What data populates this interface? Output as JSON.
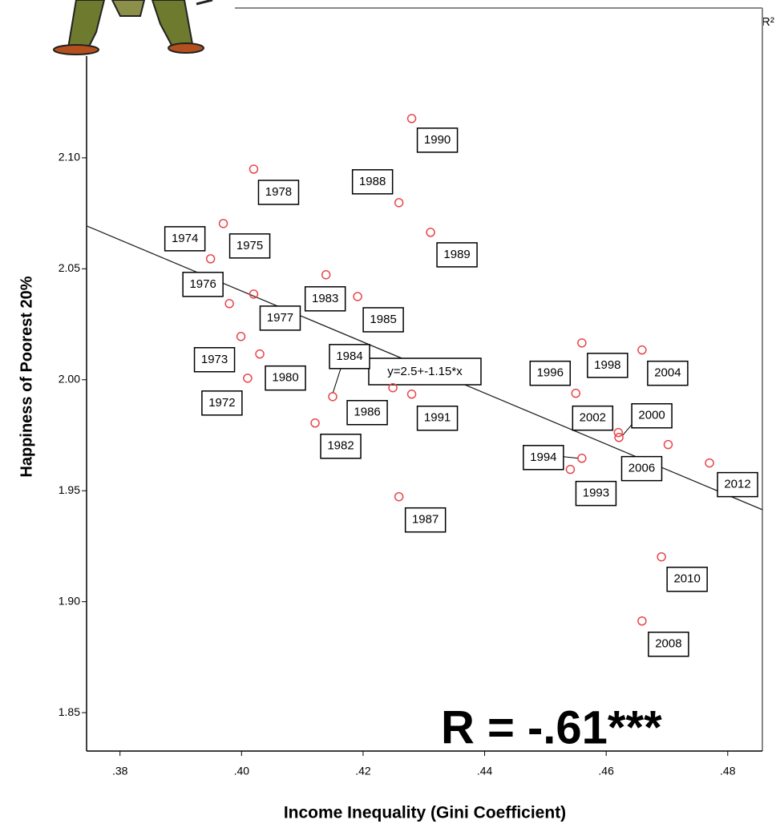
{
  "chart_data": {
    "type": "scatter",
    "x_label": "Income Inequality (Gini Coefficient)",
    "y_label": "Happiness of Poorest 20%",
    "annotation": "R = -.61***",
    "corner_label": "R²",
    "fit_label": "y=2.5+-1.15*x",
    "fit_line": {
      "intercept": 2.5,
      "slope": -1.15
    },
    "xlim": [
      0.3745,
      0.4857
    ],
    "ylim": [
      1.8327,
      2.1675
    ],
    "xticks": [
      {
        "value": 0.38,
        "label": ".38"
      },
      {
        "value": 0.4,
        "label": ".40"
      },
      {
        "value": 0.42,
        "label": ".42"
      },
      {
        "value": 0.44,
        "label": ".44"
      },
      {
        "value": 0.46,
        "label": ".46"
      },
      {
        "value": 0.48,
        "label": ".48"
      }
    ],
    "yticks": [
      1.85,
      {
        "value": 1.9,
        "label": "1.90"
      },
      1.95,
      {
        "value": 2.0,
        "label": "2.00"
      },
      2.05,
      {
        "value": 2.1,
        "label": "2.10"
      }
    ],
    "point_color": "#e8474a",
    "line_color": "#222222",
    "series": [
      {
        "labels": [
          "1972",
          "1973",
          "1974",
          "1975",
          "1976",
          "1977",
          "1978",
          "1980",
          "1982",
          "1983",
          "1984",
          "1985",
          "1986",
          "1987",
          "1988",
          "1989",
          "1990",
          "1991",
          "1993",
          "1994",
          "1996",
          "1998",
          "2000",
          "2002",
          "2004",
          "2006",
          "2008",
          "2010",
          "2012"
        ],
        "x": [
          0.401,
          0.3999,
          0.3949,
          0.397,
          0.398,
          0.402,
          0.402,
          0.403,
          0.4121,
          0.4139,
          0.415,
          0.4191,
          0.4249,
          0.4259,
          0.4259,
          0.4311,
          0.428,
          0.428,
          0.4541,
          0.456,
          0.455,
          0.456,
          0.4621,
          0.462,
          0.4659,
          0.4702,
          0.4659,
          0.4691,
          0.477
        ],
        "values": [
          2.0007,
          2.0195,
          2.0545,
          2.0704,
          2.0343,
          2.0386,
          2.0949,
          2.0116,
          1.9805,
          2.0473,
          1.9924,
          2.0375,
          1.9964,
          1.9473,
          2.0798,
          2.0664,
          2.1177,
          1.9935,
          1.9596,
          1.9646,
          1.9939,
          2.0166,
          1.974,
          1.9762,
          2.0134,
          1.9708,
          1.8913,
          1.9202,
          1.9625
        ]
      }
    ]
  }
}
